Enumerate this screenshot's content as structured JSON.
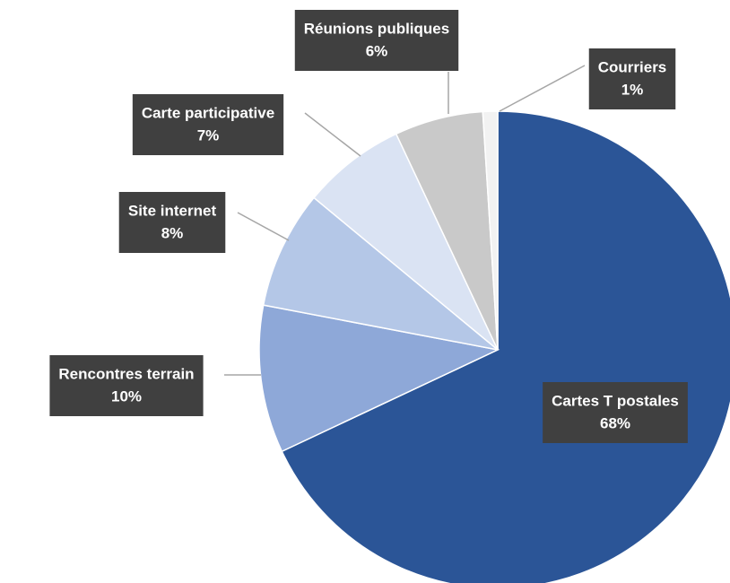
{
  "chart_data": {
    "type": "pie",
    "categories": [
      "Cartes T postales",
      "Rencontres terrain",
      "Site internet",
      "Carte participative",
      "Réunions publiques",
      "Courriers"
    ],
    "values": [
      68,
      10,
      8,
      7,
      6,
      1
    ],
    "value_labels": [
      "68%",
      "10%",
      "8%",
      "7%",
      "6%",
      "1%"
    ],
    "colors": [
      "#2b5597",
      "#8ea8d8",
      "#b4c7e7",
      "#dae3f3",
      "#c9c9c9",
      "#f2f2f2"
    ]
  }
}
